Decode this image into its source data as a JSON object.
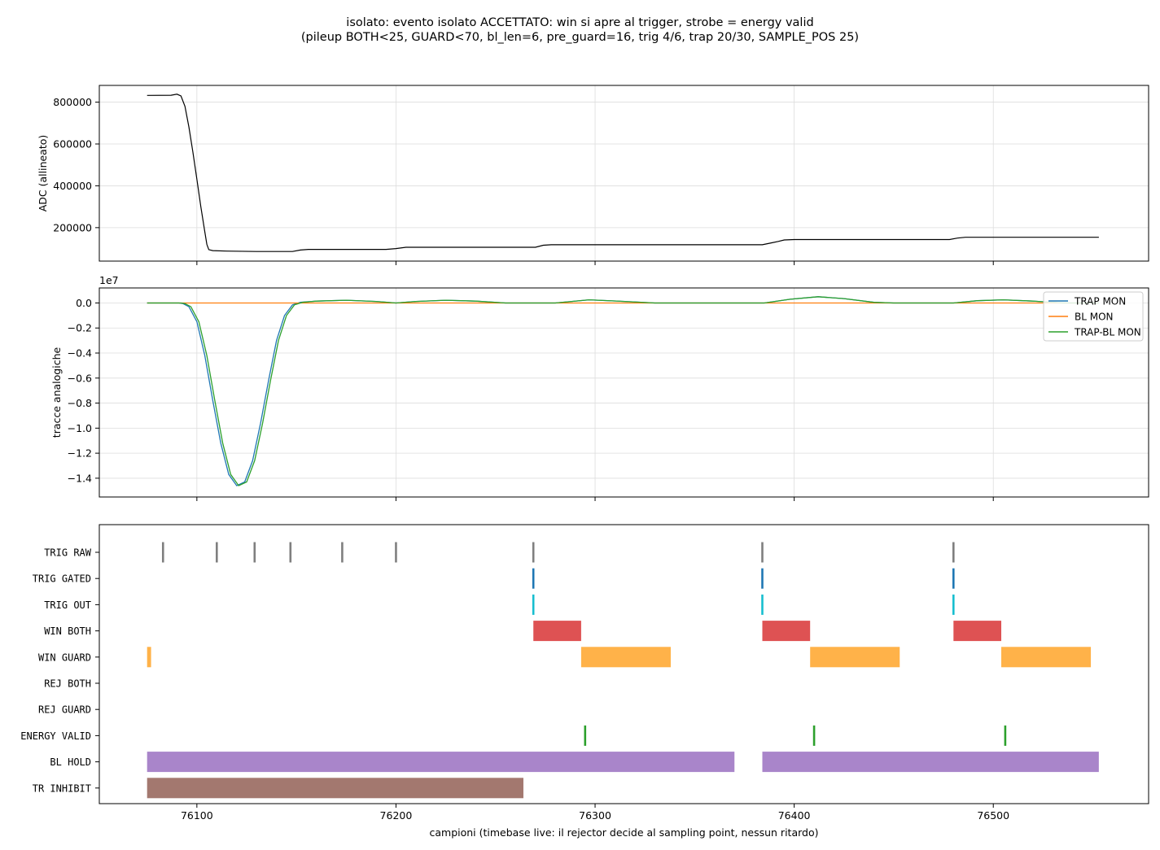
{
  "figure": {
    "title_line1": "isolato: evento isolato ACCETTATO: win si apre al trigger, strobe = energy valid",
    "title_line2": "(pileup BOTH<25, GUARD<70, bl_len=6, pre_guard=16, trig 4/6, trap 20/30, SAMPLE_POS 25)"
  },
  "x_axis": {
    "xlim": [
      76051,
      76578
    ],
    "ticks": [
      76100,
      76200,
      76300,
      76400,
      76500
    ],
    "tick_labels": [
      "76100",
      "76200",
      "76300",
      "76400",
      "76500"
    ],
    "label": "campioni (timebase live: il rejector decide al sampling point, nessun ritardo)"
  },
  "chart_data": [
    {
      "type": "line",
      "ylabel": "ADC (allineato)",
      "ylim": [
        40000,
        880000
      ],
      "yticks": [
        200000,
        400000,
        600000,
        800000
      ],
      "ytick_labels": [
        "200000",
        "400000",
        "600000",
        "800000"
      ],
      "grid": true,
      "series": [
        {
          "color": "#000000",
          "points": [
            [
              76075,
              832000
            ],
            [
              76087,
              833000
            ],
            [
              76090,
              838000
            ],
            [
              76092,
              830000
            ],
            [
              76094,
              780000
            ],
            [
              76096,
              680000
            ],
            [
              76098,
              560000
            ],
            [
              76100,
              430000
            ],
            [
              76102,
              300000
            ],
            [
              76104,
              180000
            ],
            [
              76105,
              120000
            ],
            [
              76106,
              95000
            ],
            [
              76108,
              90000
            ],
            [
              76115,
              88000
            ],
            [
              76130,
              86000
            ],
            [
              76148,
              86000
            ],
            [
              76152,
              93000
            ],
            [
              76156,
              96000
            ],
            [
              76195,
              96000
            ],
            [
              76200,
              100000
            ],
            [
              76205,
              106000
            ],
            [
              76270,
              106000
            ],
            [
              76274,
              116000
            ],
            [
              76278,
              118000
            ],
            [
              76384,
              118000
            ],
            [
              76388,
              126000
            ],
            [
              76392,
              134000
            ],
            [
              76395,
              141000
            ],
            [
              76400,
              143000
            ],
            [
              76478,
              143000
            ],
            [
              76482,
              150000
            ],
            [
              76486,
              154000
            ],
            [
              76553,
              154000
            ]
          ]
        }
      ]
    },
    {
      "type": "line",
      "ylabel": "tracce analogiche",
      "scale_label": "1e7",
      "ylim": [
        -1.55,
        0.12
      ],
      "yticks": [
        0.0,
        -0.2,
        -0.4,
        -0.6,
        -0.8,
        -1.0,
        -1.2,
        -1.4
      ],
      "ytick_labels": [
        "0.0",
        "−0.2",
        "−0.4",
        "−0.6",
        "−0.8",
        "−1.0",
        "−1.2",
        "−1.4"
      ],
      "grid": true,
      "legend": "top-right",
      "series": [
        {
          "name": "TRAP MON",
          "color": "#1f77b4",
          "points": [
            [
              76075,
              0
            ],
            [
              76091,
              0
            ],
            [
              76093,
              -0.005
            ],
            [
              76096,
              -0.03
            ],
            [
              76100,
              -0.15
            ],
            [
              76104,
              -0.42
            ],
            [
              76108,
              -0.78
            ],
            [
              76112,
              -1.12
            ],
            [
              76116,
              -1.37
            ],
            [
              76120,
              -1.46
            ],
            [
              76124,
              -1.43
            ],
            [
              76128,
              -1.26
            ],
            [
              76132,
              -0.96
            ],
            [
              76136,
              -0.62
            ],
            [
              76140,
              -0.3
            ],
            [
              76144,
              -0.1
            ],
            [
              76148,
              -0.015
            ],
            [
              76152,
              0.005
            ],
            [
              76160,
              0.015
            ],
            [
              76175,
              0.022
            ],
            [
              76190,
              0.012
            ],
            [
              76200,
              0.0
            ],
            [
              76210,
              0.012
            ],
            [
              76225,
              0.022
            ],
            [
              76240,
              0.015
            ],
            [
              76255,
              0.0
            ],
            [
              76280,
              0.0
            ],
            [
              76297,
              0.025
            ],
            [
              76315,
              0.012
            ],
            [
              76330,
              0.0
            ],
            [
              76385,
              0.0
            ],
            [
              76398,
              0.03
            ],
            [
              76412,
              0.05
            ],
            [
              76425,
              0.035
            ],
            [
              76440,
              0.005
            ],
            [
              76450,
              0.0
            ],
            [
              76480,
              0.0
            ],
            [
              76492,
              0.018
            ],
            [
              76505,
              0.025
            ],
            [
              76520,
              0.015
            ],
            [
              76535,
              0.0
            ],
            [
              76553,
              0.0
            ]
          ]
        },
        {
          "name": "BL MON",
          "color": "#ff7f0e",
          "points": [
            [
              76075,
              0
            ],
            [
              76553,
              0
            ]
          ]
        },
        {
          "name": "TRAP-BL MON",
          "color": "#2ca02c",
          "points": [
            [
              76075,
              0
            ],
            [
              76092,
              0
            ],
            [
              76094,
              -0.005
            ],
            [
              76097,
              -0.03
            ],
            [
              76101,
              -0.15
            ],
            [
              76105,
              -0.42
            ],
            [
              76109,
              -0.78
            ],
            [
              76113,
              -1.12
            ],
            [
              76117,
              -1.37
            ],
            [
              76121,
              -1.46
            ],
            [
              76125,
              -1.43
            ],
            [
              76129,
              -1.26
            ],
            [
              76133,
              -0.96
            ],
            [
              76137,
              -0.62
            ],
            [
              76141,
              -0.3
            ],
            [
              76145,
              -0.1
            ],
            [
              76149,
              -0.015
            ],
            [
              76153,
              0.005
            ],
            [
              76160,
              0.015
            ],
            [
              76175,
              0.022
            ],
            [
              76190,
              0.012
            ],
            [
              76200,
              0.0
            ],
            [
              76210,
              0.012
            ],
            [
              76225,
              0.022
            ],
            [
              76240,
              0.015
            ],
            [
              76255,
              0.0
            ],
            [
              76280,
              0.0
            ],
            [
              76297,
              0.025
            ],
            [
              76315,
              0.012
            ],
            [
              76330,
              0.0
            ],
            [
              76385,
              0.0
            ],
            [
              76398,
              0.03
            ],
            [
              76412,
              0.05
            ],
            [
              76425,
              0.035
            ],
            [
              76440,
              0.005
            ],
            [
              76450,
              0.0
            ],
            [
              76480,
              0.0
            ],
            [
              76492,
              0.018
            ],
            [
              76505,
              0.025
            ],
            [
              76520,
              0.015
            ],
            [
              76535,
              0.0
            ],
            [
              76553,
              0.0
            ]
          ]
        }
      ]
    },
    {
      "type": "timeline",
      "rows": [
        {
          "label": "TRIG RAW",
          "color": "#7f7f7f",
          "marks": [
            76083,
            76110,
            76129,
            76147,
            76173,
            76200,
            76269,
            76384,
            76480
          ],
          "bars": []
        },
        {
          "label": "TRIG GATED",
          "color": "#1f77b4",
          "marks": [
            76269,
            76384,
            76480
          ],
          "bars": []
        },
        {
          "label": "TRIG OUT",
          "color": "#17becf",
          "marks": [
            76269,
            76384,
            76480
          ],
          "bars": []
        },
        {
          "label": "WIN BOTH",
          "color": "#d62728",
          "marks": [],
          "bars": [
            [
              76269,
              76293
            ],
            [
              76384,
              76408
            ],
            [
              76480,
              76504
            ]
          ]
        },
        {
          "label": "WIN GUARD",
          "color": "#ff9f1c",
          "marks": [],
          "bars": [
            [
              76075,
              76077
            ],
            [
              76293,
              76338
            ],
            [
              76408,
              76453
            ],
            [
              76504,
              76549
            ]
          ]
        },
        {
          "label": "REJ BOTH",
          "color": "#d62728",
          "marks": [],
          "bars": []
        },
        {
          "label": "REJ GUARD",
          "color": "#ff7f0e",
          "marks": [],
          "bars": []
        },
        {
          "label": "ENERGY VALID",
          "color": "#2ca02c",
          "marks": [
            76295,
            76410,
            76506
          ],
          "bars": []
        },
        {
          "label": "BL HOLD",
          "color": "#9467bd",
          "marks": [],
          "bars": [
            [
              76075,
              76370
            ],
            [
              76384,
              76553
            ]
          ]
        },
        {
          "label": "TR INHIBIT",
          "color": "#8c564b",
          "marks": [],
          "bars": [
            [
              76075,
              76264
            ]
          ]
        }
      ]
    }
  ]
}
